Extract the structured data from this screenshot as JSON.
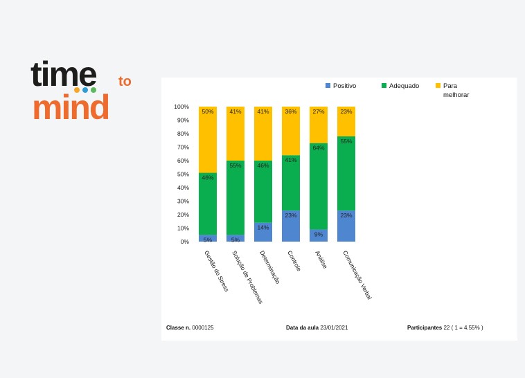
{
  "logo": {
    "word_time": "time",
    "word_to": "to",
    "word_mind": "mind",
    "colors": {
      "dark": "#1d1d1b",
      "orange": "#ee6b2d",
      "dot1": "#f5a623",
      "dot2": "#2e9bd6",
      "dot3": "#5cb85c"
    }
  },
  "chart_data": {
    "type": "bar",
    "stacked": true,
    "percent": true,
    "categories": [
      "Gestão do Stress",
      "Solução de Problemas",
      "Determinação",
      "Controle",
      "Análise",
      "Comunicação Verbal"
    ],
    "series": [
      {
        "name": "Positivo",
        "color": "#4f86d0",
        "values": [
          5,
          5,
          14,
          23,
          9,
          23
        ],
        "labels": [
          "5%",
          "5%",
          "14%",
          "23%",
          "9%",
          "23%"
        ]
      },
      {
        "name": "Adequado",
        "color": "#0aae4e",
        "values": [
          46,
          55,
          46,
          41,
          64,
          55
        ],
        "labels": [
          "46%",
          "55%",
          "46%",
          "41%",
          "64%",
          "55%"
        ]
      },
      {
        "name": "Para melhorar",
        "color": "#ffc000",
        "values": [
          50,
          41,
          41,
          36,
          27,
          23
        ],
        "labels": [
          "50%",
          "41%",
          "41%",
          "36%",
          "27%",
          "23%"
        ]
      }
    ],
    "ylim": [
      0,
      100
    ],
    "yticks": [
      "0%",
      "10%",
      "20%",
      "30%",
      "40%",
      "50%",
      "60%",
      "70%",
      "80%",
      "90%",
      "100%"
    ],
    "legend_position": "top-right",
    "legend": [
      {
        "lines": [
          "Positivo"
        ]
      },
      {
        "lines": [
          "Adequado"
        ]
      },
      {
        "lines": [
          "Para",
          "melhorar"
        ]
      }
    ],
    "grid": false
  },
  "footer": {
    "class_label": "Classe n.",
    "class_value": "0000125",
    "date_label": "Data da aula",
    "date_value": "23/01/2021",
    "participants_label": "Participantes",
    "participants_value": "22 ( 1 = 4.55% )"
  }
}
